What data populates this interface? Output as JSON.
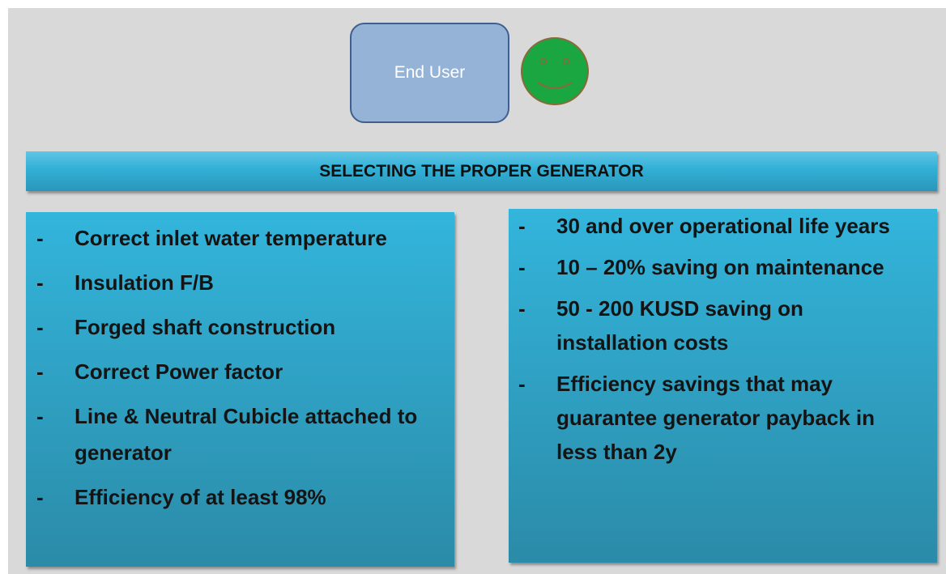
{
  "header": {
    "user_label": "End User"
  },
  "banner": {
    "title": "SELECTING THE PROPER GENERATOR"
  },
  "bullet": "-",
  "left": {
    "items": [
      "Correct inlet water temperature",
      "Insulation F/B",
      "Forged shaft construction",
      "Correct Power factor",
      "Line & Neutral Cubicle attached to generator",
      "Efficiency of at least 98%"
    ]
  },
  "right": {
    "items": [
      "30 and over operational life years",
      "10 – 20% saving on maintenance",
      "50 - 200 KUSD saving on installation costs",
      "Efficiency savings that may guarantee generator payback in less than 2y"
    ]
  }
}
